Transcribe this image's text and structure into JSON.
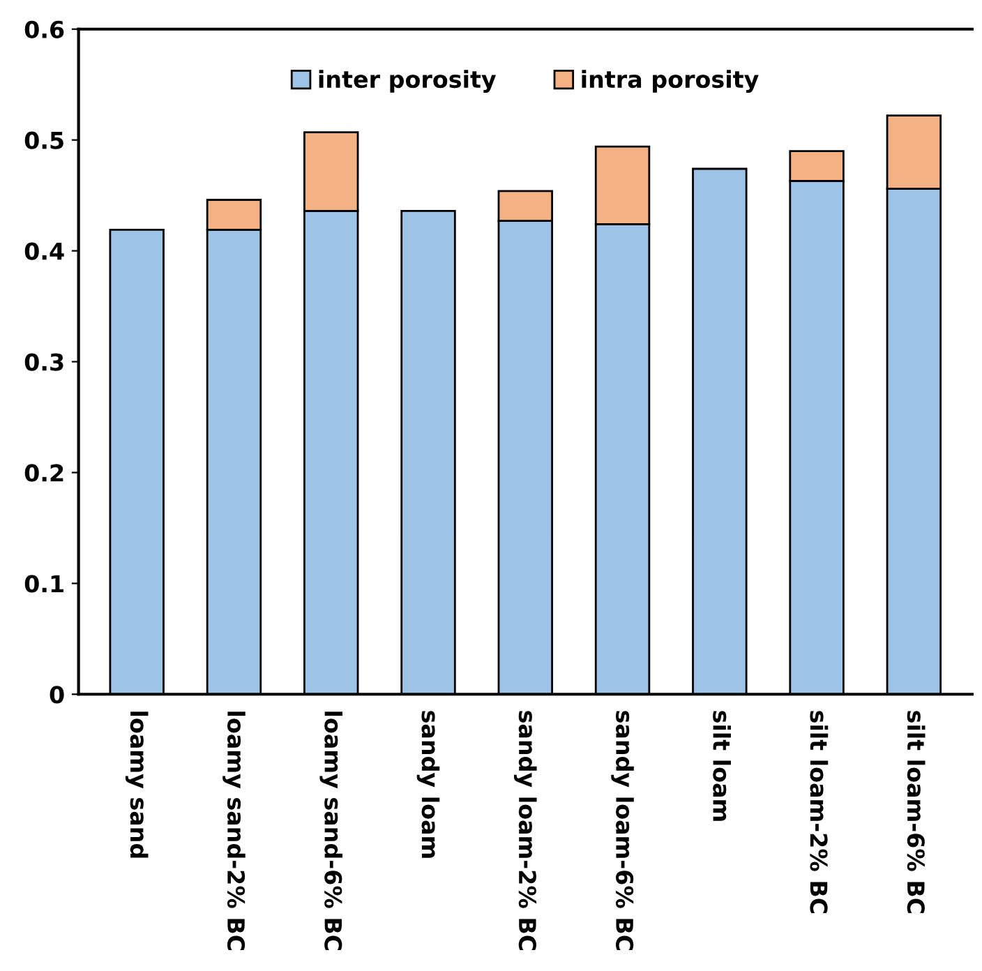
{
  "chart_data": {
    "type": "bar",
    "stacked": true,
    "categories": [
      "loamy sand",
      "loamy sand-2% BC",
      "loamy sand-6% BC",
      "sandy loam",
      "sandy loam-2% BC",
      "sandy loam-6% BC",
      "silt loam",
      "silt loam-2% BC",
      "silt loam-6% BC"
    ],
    "series": [
      {
        "name": "inter porosity",
        "color": "#9dc3e6",
        "values": [
          0.419,
          0.419,
          0.436,
          0.436,
          0.427,
          0.424,
          0.474,
          0.463,
          0.456
        ]
      },
      {
        "name": "intra porosity",
        "color": "#f4b183",
        "values": [
          null,
          0.027,
          0.071,
          null,
          0.027,
          0.07,
          null,
          0.027,
          0.066
        ]
      }
    ],
    "ylim": [
      0,
      0.6
    ],
    "yticks": [
      {
        "value": 0,
        "label": "0"
      },
      0.1,
      0.2,
      0.3,
      0.4,
      0.5,
      0.6
    ],
    "grid": false,
    "legend": "top"
  }
}
